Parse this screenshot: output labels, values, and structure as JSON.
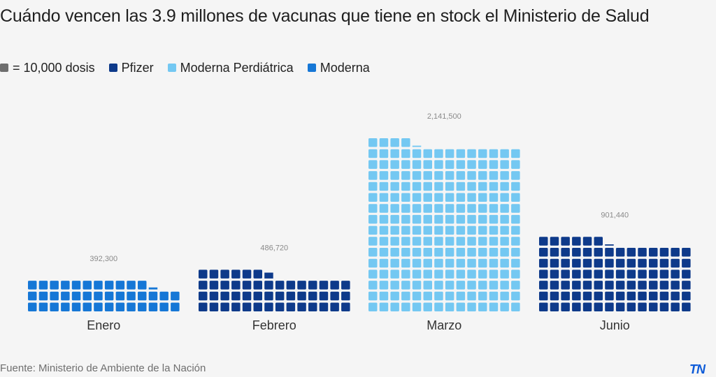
{
  "title": "Cuándo vencen las 3.9 millones de vacunas que tiene en stock el Ministerio de Salud",
  "legend": [
    {
      "label": "= 10,000 dosis",
      "color": "#6e6e6e"
    },
    {
      "label": "Pfizer",
      "color": "#0e3a8a"
    },
    {
      "label": "Moderna Perdiátrica",
      "color": "#74c8f2"
    },
    {
      "label": "Moderna",
      "color": "#1677d6"
    }
  ],
  "source": "Fuente: Ministerio de Ambiente de la Nación",
  "logo": "TN",
  "chart_data": {
    "type": "waffle",
    "unit_doses": 10000,
    "categories": [
      "Enero",
      "Febrero",
      "Marzo",
      "Junio"
    ],
    "values": [
      392300,
      486720,
      2141500,
      901440
    ],
    "value_labels": [
      "392,300",
      "486,720",
      "2,141,500",
      "901,440"
    ],
    "series": [
      "Moderna",
      "Pfizer",
      "Moderna Perdiátrica",
      "Pfizer"
    ],
    "colors": [
      "#1677d6",
      "#0e3a8a",
      "#74c8f2",
      "#0e3a8a"
    ]
  }
}
